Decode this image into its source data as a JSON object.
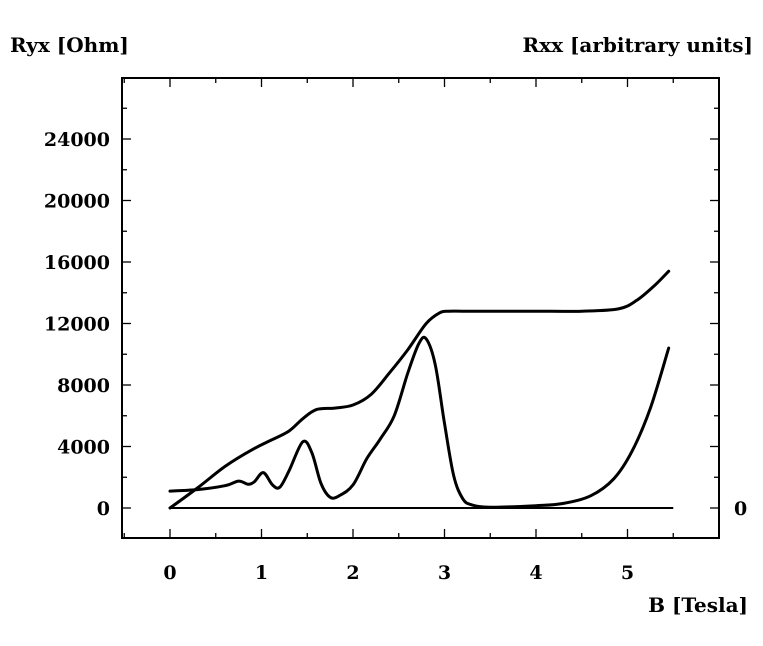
{
  "chart_data": {
    "type": "line",
    "title": "",
    "xlabel": "B [Tesla]",
    "ylabel_left": "Ryx [Ohm]",
    "ylabel_right": "Rxx [arbitrary units]",
    "xlim": [
      -0.5,
      6.0
    ],
    "ylim": [
      -2000,
      28000
    ],
    "x_ticks": [
      0,
      1,
      2,
      3,
      4,
      5
    ],
    "x_tick_labels": [
      "0",
      "1",
      "2",
      "3",
      "4",
      "5"
    ],
    "y_ticks": [
      0,
      4000,
      8000,
      12000,
      16000,
      20000,
      24000
    ],
    "y_tick_labels": [
      "0",
      "4000",
      "8000",
      "12000",
      "16000",
      "20000",
      "24000"
    ],
    "right_tick_labels": [
      {
        "y": 0,
        "label": "0"
      }
    ],
    "grid": false,
    "series": [
      {
        "axis": "left",
        "x": [
          0.0,
          0.3,
          0.6,
          0.9,
          1.1,
          1.3,
          1.45,
          1.6,
          1.8,
          2.0,
          2.2,
          2.4,
          2.6,
          2.8,
          2.95,
          3.05,
          3.2,
          3.5,
          4.0,
          4.5,
          4.9,
          5.1,
          5.3,
          5.45
        ],
        "y": [
          0,
          1300,
          2700,
          3800,
          4400,
          5000,
          5800,
          6400,
          6500,
          6700,
          7400,
          8800,
          10300,
          12000,
          12700,
          12800,
          12800,
          12800,
          12800,
          12800,
          12950,
          13500,
          14500,
          15400
        ]
      },
      {
        "axis": "right",
        "x": [
          0.0,
          0.3,
          0.6,
          0.75,
          0.85,
          0.92,
          1.02,
          1.12,
          1.2,
          1.3,
          1.45,
          1.55,
          1.65,
          1.75,
          1.85,
          2.0,
          2.15,
          2.3,
          2.45,
          2.6,
          2.72,
          2.8,
          2.9,
          3.0,
          3.1,
          3.2,
          3.3,
          3.5,
          4.0,
          4.3,
          4.6,
          4.85,
          5.05,
          5.25,
          5.45
        ],
        "y": [
          1100,
          1200,
          1450,
          1750,
          1550,
          1700,
          2300,
          1500,
          1350,
          2400,
          4300,
          3600,
          1600,
          700,
          800,
          1500,
          3200,
          4500,
          6000,
          8800,
          10700,
          11000,
          9300,
          5500,
          2100,
          600,
          200,
          50,
          150,
          300,
          800,
          1900,
          3700,
          6500,
          10400
        ]
      }
    ]
  }
}
